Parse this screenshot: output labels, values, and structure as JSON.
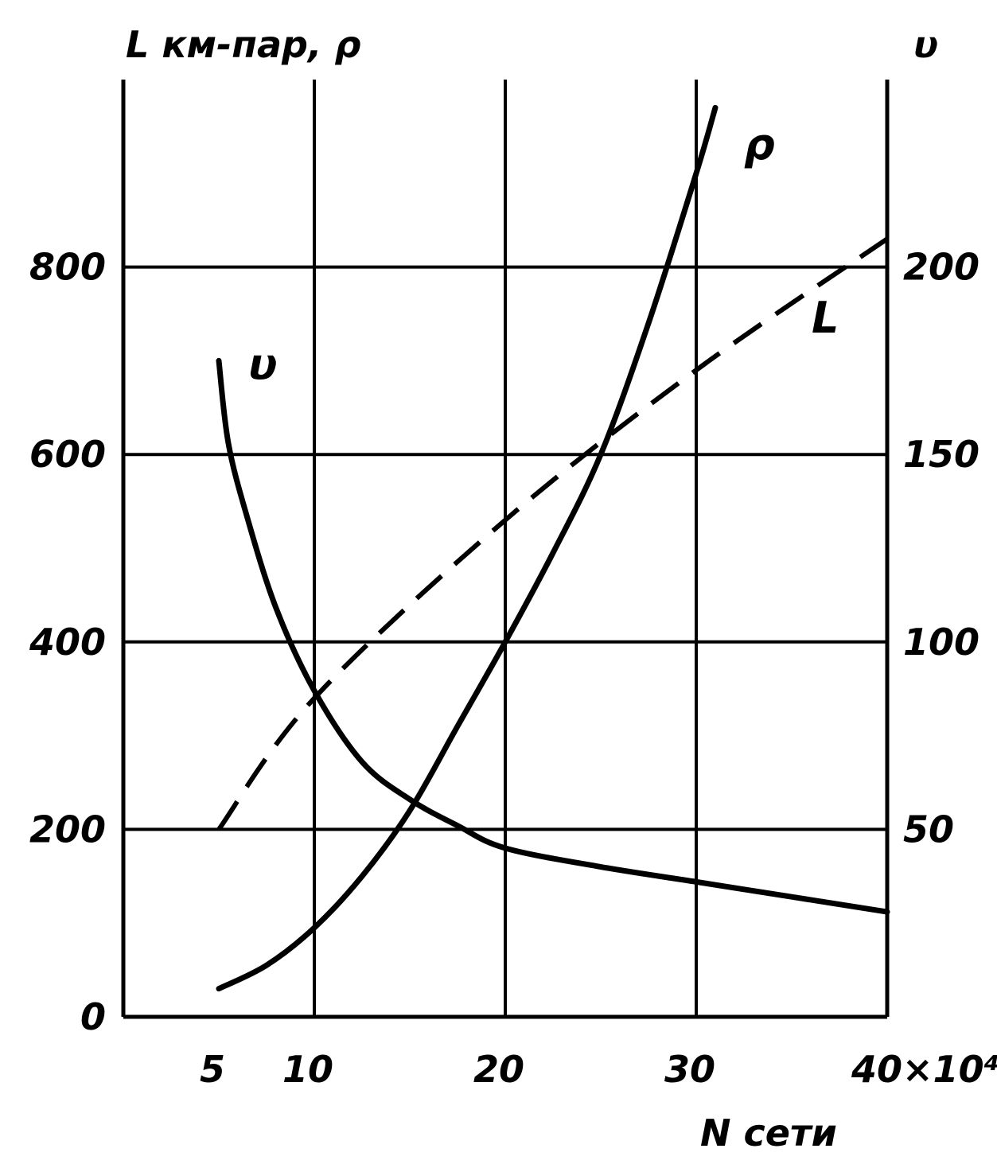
{
  "chart_data": {
    "type": "line",
    "title": "",
    "xlabel": "N сети",
    "ylabel_left": "L км-пар, ρ",
    "ylabel_right": "υ",
    "x_ticks": [
      "5",
      "10",
      "20",
      "30",
      "40×10⁴"
    ],
    "x_tick_values": [
      5,
      10,
      20,
      30,
      40
    ],
    "y_left_ticks": [
      "0",
      "200",
      "400",
      "600",
      "800"
    ],
    "y_left_tick_values": [
      0,
      200,
      400,
      600,
      800
    ],
    "y_right_ticks": [
      "50",
      "100",
      "150",
      "200"
    ],
    "y_right_tick_values": [
      50,
      100,
      150,
      200
    ],
    "xlim": [
      0,
      40
    ],
    "ylim_left": [
      0,
      1000
    ],
    "ylim_right": [
      0,
      250
    ],
    "grid": true,
    "series": [
      {
        "name": "ρ",
        "axis": "left",
        "style": "solid",
        "x": [
          5,
          7.5,
          10,
          12.5,
          15,
          17.5,
          20,
          22.5,
          25,
          27.5,
          30,
          31
        ],
        "y": [
          30,
          55,
          95,
          150,
          220,
          310,
          400,
          495,
          600,
          740,
          900,
          970
        ]
      },
      {
        "name": "L",
        "axis": "left",
        "style": "dashed",
        "x": [
          5,
          10,
          20,
          30,
          40
        ],
        "y": [
          200,
          340,
          530,
          690,
          830
        ]
      },
      {
        "name": "υ",
        "axis": "right",
        "style": "solid",
        "x": [
          5,
          5.5,
          6.5,
          8,
          10,
          12.5,
          15,
          17.5,
          20,
          25,
          30,
          35,
          40
        ],
        "y": [
          175,
          153,
          133,
          109,
          87,
          68,
          58,
          51,
          45,
          40,
          36,
          32,
          28
        ]
      }
    ]
  }
}
